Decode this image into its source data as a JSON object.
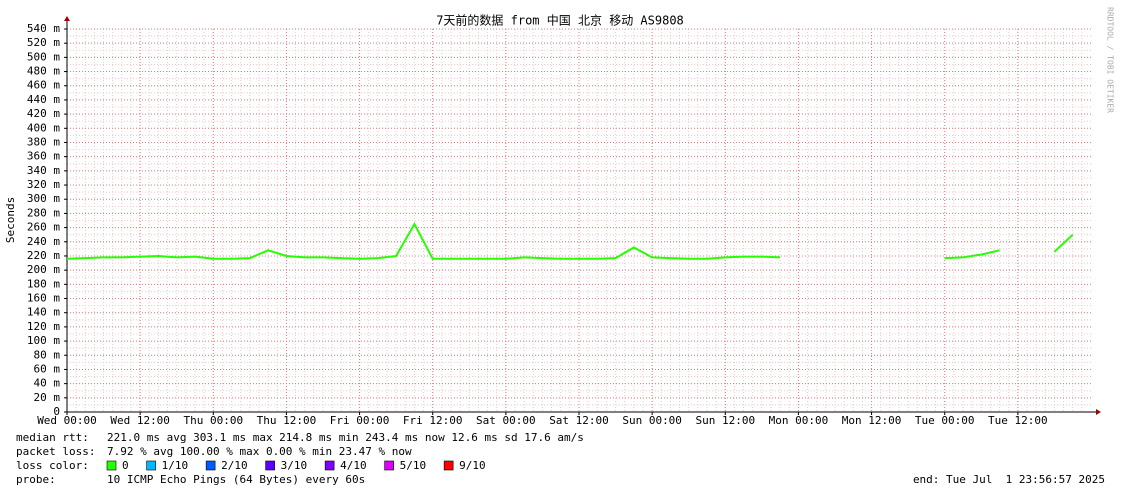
{
  "chart_data": {
    "type": "line",
    "title": "7天前的数据 from 中国 北京 移动 AS9808",
    "y_label": "Seconds",
    "watermark": "RRDTOOL / TOBI OETIKER",
    "categories": [
      "Wed 00:00",
      null,
      null,
      null,
      "Wed 12:00",
      null,
      null,
      null,
      "Thu 00:00",
      null,
      null,
      null,
      "Thu 12:00",
      null,
      null,
      null,
      "Fri 00:00",
      null,
      null,
      null,
      "Fri 12:00",
      null,
      null,
      null,
      "Sat 00:00",
      null,
      null,
      null,
      "Sat 12:00",
      null,
      null,
      null,
      "Sun 00:00",
      null,
      null,
      null,
      "Sun 12:00",
      null,
      null,
      null,
      "Mon 00:00",
      null,
      null,
      null,
      "Mon 12:00",
      null,
      null,
      null,
      "Tue 00:00",
      null,
      null,
      null,
      "Tue 12:00",
      null,
      null,
      null
    ],
    "values": [
      216,
      217,
      218,
      218,
      219,
      220,
      218,
      219,
      216,
      216,
      217,
      228,
      220,
      218,
      218,
      217,
      216,
      217,
      220,
      265,
      216,
      216,
      216,
      216,
      216,
      218,
      217,
      216,
      216,
      216,
      217,
      232,
      218,
      217,
      216,
      216,
      218,
      219,
      219,
      218,
      null,
      null,
      null,
      null,
      null,
      null,
      null,
      null,
      217,
      218,
      222,
      228,
      null,
      null,
      226,
      250
    ],
    "color": "#26ff00",
    "ylim": [
      0,
      540
    ],
    "yticks": [
      0,
      {
        "value": 20,
        "label": "20 m"
      },
      {
        "value": 40,
        "label": "40 m"
      },
      {
        "value": 60,
        "label": "60 m"
      },
      {
        "value": 80,
        "label": "80 m"
      },
      {
        "value": 100,
        "label": "100 m"
      },
      {
        "value": 120,
        "label": "120 m"
      },
      {
        "value": 140,
        "label": "140 m"
      },
      {
        "value": 160,
        "label": "160 m"
      },
      {
        "value": 180,
        "label": "180 m"
      },
      {
        "value": 200,
        "label": "200 m"
      },
      {
        "value": 220,
        "label": "220 m"
      },
      {
        "value": 240,
        "label": "240 m"
      },
      {
        "value": 260,
        "label": "260 m"
      },
      {
        "value": 280,
        "label": "280 m"
      },
      {
        "value": 300,
        "label": "300 m"
      },
      {
        "value": 320,
        "label": "320 m"
      },
      {
        "value": 340,
        "label": "340 m"
      },
      {
        "value": 360,
        "label": "360 m"
      },
      {
        "value": 380,
        "label": "380 m"
      },
      {
        "value": 400,
        "label": "400 m"
      },
      {
        "value": 420,
        "label": "420 m"
      },
      {
        "value": 440,
        "label": "440 m"
      },
      {
        "value": 460,
        "label": "460 m"
      },
      {
        "value": 480,
        "label": "480 m"
      },
      {
        "value": 500,
        "label": "500 m"
      },
      {
        "value": 520,
        "label": "520 m"
      },
      {
        "value": 540,
        "label": "540 m"
      }
    ],
    "grid": true,
    "stats": [
      {
        "label": "median rtt:",
        "text": "221.0 ms avg  303.1 ms max  214.8 ms min  243.4 ms now  12.6 ms sd  17.6   am/s"
      },
      {
        "label": "packet loss:",
        "text": "7.92 % avg  100.00 % max  0.00 % min  23.47 % now"
      }
    ],
    "loss_legend": {
      "label": "loss color:",
      "items": [
        {
          "name": "0",
          "color": "#26ff00"
        },
        {
          "name": "1/10",
          "color": "#00b8ff"
        },
        {
          "name": "2/10",
          "color": "#0059ff"
        },
        {
          "name": "3/10",
          "color": "#5e00ff"
        },
        {
          "name": "4/10",
          "color": "#7e00ff"
        },
        {
          "name": "5/10",
          "color": "#dd00ff"
        },
        {
          "name": "9/10",
          "color": "#ff0000"
        }
      ]
    },
    "probe": {
      "label": "probe:",
      "text": "10 ICMP Echo Pings (64 Bytes) every 60s"
    },
    "end": "end: Tue Jul  1 23:56:57 2025"
  }
}
